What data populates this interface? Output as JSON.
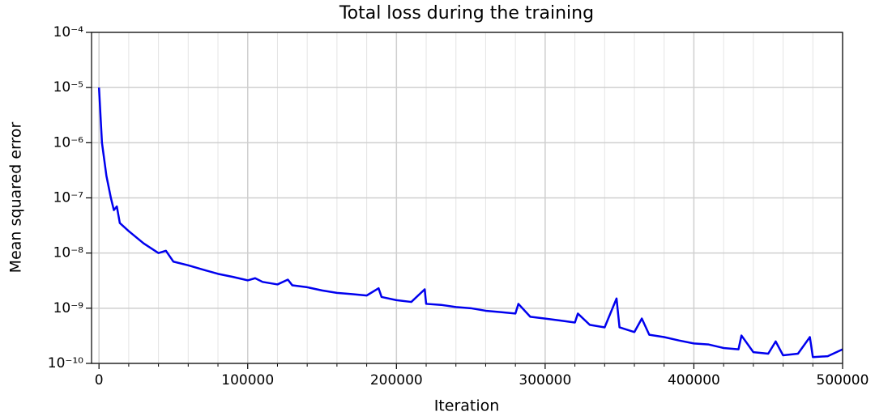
{
  "chart_data": {
    "type": "line",
    "title": "Total loss during the training",
    "x_label": "Iteration",
    "y_label": "Mean squared error",
    "log_y": true,
    "grid": true,
    "xlim": [
      -5000,
      500000
    ],
    "xticks": [
      0,
      100000,
      200000,
      300000,
      400000,
      500000
    ],
    "xminorticks": [
      20000,
      40000,
      60000,
      80000,
      120000,
      140000,
      160000,
      180000,
      220000,
      240000,
      260000,
      280000,
      320000,
      340000,
      360000,
      380000,
      420000,
      440000,
      460000,
      480000
    ],
    "ylim": [
      1e-10,
      0.0001
    ],
    "yticks": [
      {
        "value": 1e-10,
        "label": "10⁻¹⁰"
      },
      {
        "value": 1e-09,
        "label": "10⁻⁹"
      },
      {
        "value": 1e-08,
        "label": "10⁻⁸"
      },
      {
        "value": 1e-07,
        "label": "10⁻⁷"
      },
      {
        "value": 1e-06,
        "label": "10⁻⁶"
      },
      {
        "value": 1e-05,
        "label": "10⁻⁵"
      },
      {
        "value": 0.0001,
        "label": "10⁻⁴"
      }
    ],
    "x": [
      0,
      2000,
      5000,
      8000,
      10000,
      12000,
      14000,
      20000,
      30000,
      40000,
      45000,
      50000,
      60000,
      70000,
      80000,
      90000,
      100000,
      105000,
      110000,
      120000,
      127000,
      130000,
      140000,
      150000,
      160000,
      170000,
      180000,
      188000,
      190000,
      200000,
      210000,
      219000,
      220000,
      230000,
      240000,
      250000,
      260000,
      270000,
      280000,
      282000,
      290000,
      300000,
      310000,
      320000,
      322000,
      330000,
      340000,
      348000,
      350000,
      360000,
      365000,
      370000,
      380000,
      390000,
      400000,
      410000,
      420000,
      430000,
      432000,
      440000,
      450000,
      455000,
      460000,
      470000,
      478000,
      480000,
      490000,
      500000
    ],
    "series": [
      {
        "color": "#0000ee",
        "values": [
          1e-05,
          1e-06,
          2.5e-07,
          1e-07,
          6e-08,
          7e-08,
          3.5e-08,
          2.5e-08,
          1.5e-08,
          1e-08,
          1.1e-08,
          7e-09,
          6e-09,
          5e-09,
          4.2e-09,
          3.7e-09,
          3.2e-09,
          3.5e-09,
          3e-09,
          2.7e-09,
          3.3e-09,
          2.6e-09,
          2.4e-09,
          2.1e-09,
          1.9e-09,
          1.8e-09,
          1.7e-09,
          2.3e-09,
          1.6e-09,
          1.4e-09,
          1.3e-09,
          2.2e-09,
          1.2e-09,
          1.15e-09,
          1.05e-09,
          1e-09,
          9e-10,
          8.5e-10,
          8e-10,
          1.2e-09,
          7e-10,
          6.5e-10,
          6e-10,
          5.5e-10,
          8e-10,
          5e-10,
          4.5e-10,
          1.5e-09,
          4.5e-10,
          3.7e-10,
          6.5e-10,
          3.3e-10,
          3e-10,
          2.6e-10,
          2.3e-10,
          2.2e-10,
          1.9e-10,
          1.8e-10,
          3.2e-10,
          1.6e-10,
          1.5e-10,
          2.5e-10,
          1.4e-10,
          1.5e-10,
          3e-10,
          1.3e-10,
          1.35e-10,
          1.8e-10
        ]
      }
    ]
  }
}
